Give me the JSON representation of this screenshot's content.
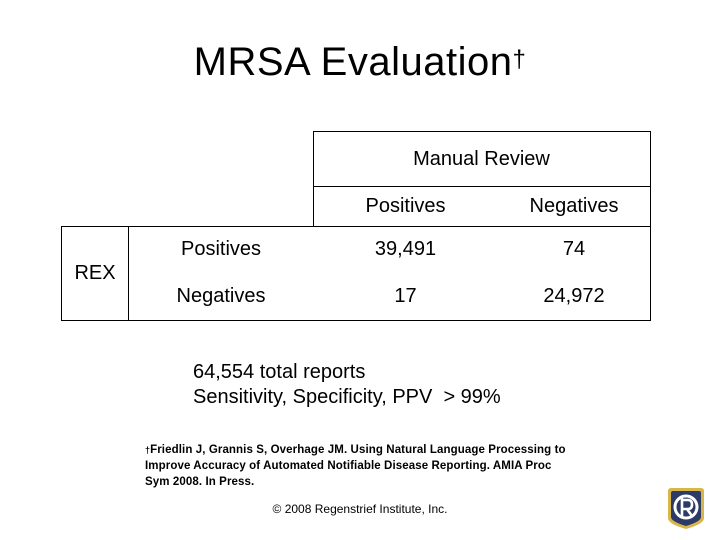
{
  "title": {
    "text": "MRSA Evaluation",
    "dagger": "†"
  },
  "table": {
    "group_header": "Manual Review",
    "column_headers": [
      "Positives",
      "Negatives"
    ],
    "row_group_label": "REX",
    "row_headers": [
      "Positives",
      "Negatives"
    ],
    "cells": [
      [
        "39,491",
        "74"
      ],
      [
        "17",
        "24,972"
      ]
    ]
  },
  "summary": {
    "line1": "64,554 total reports",
    "line2": "Sensitivity, Specificity, PPV  > 99%"
  },
  "reference": {
    "dagger": "†",
    "line1": "Friedlin J, Grannis S, Overhage JM. Using Natural Language Processing to",
    "line2": "Improve Accuracy of Automated Notifiable Disease Reporting. AMIA Proc",
    "line3": "Sym 2008. In Press."
  },
  "copyright": "© 2008 Regenstrief Institute, Inc.",
  "logo": {
    "icon": "regenstrief-logo-icon",
    "color": "#2b3a67"
  }
}
